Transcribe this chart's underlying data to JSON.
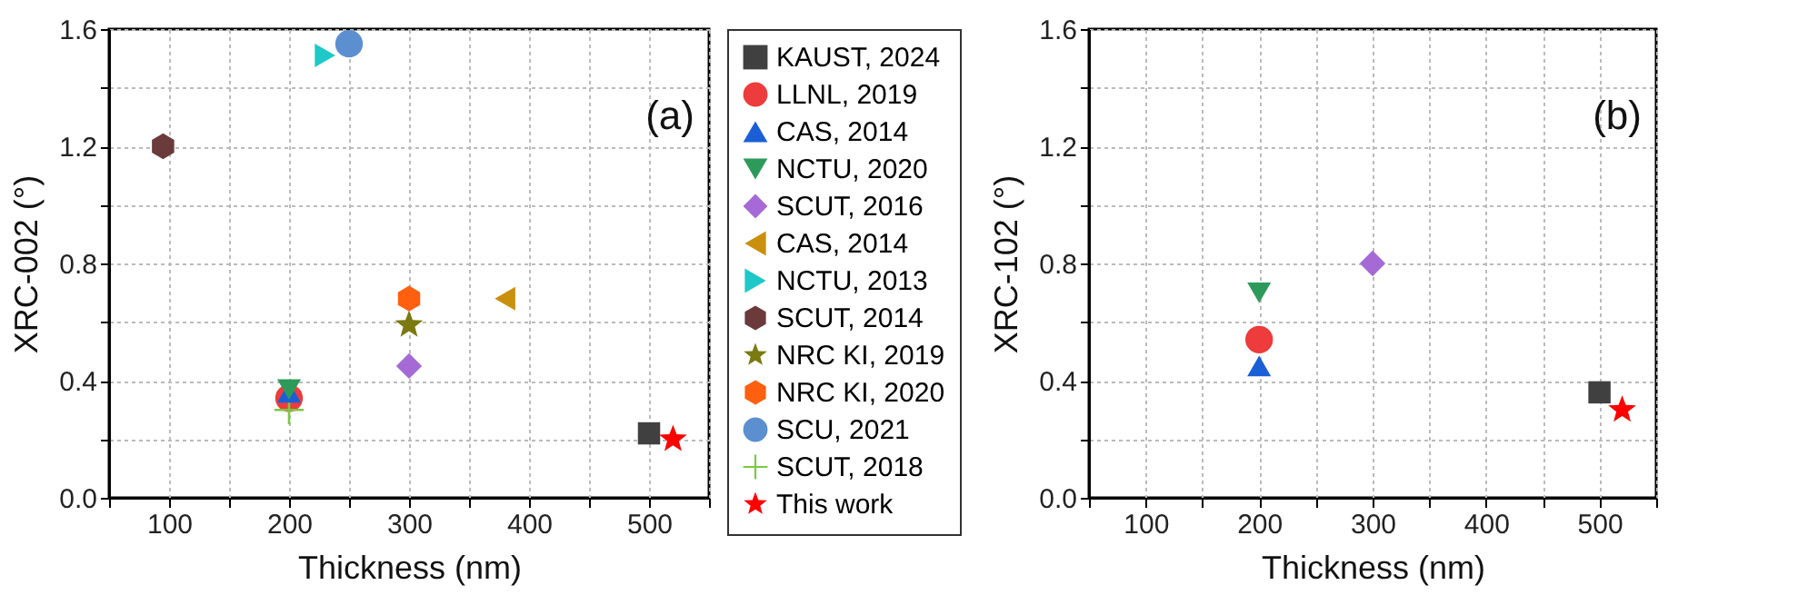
{
  "chart_data": [
    {
      "type": "scatter",
      "xlabel": "Thickness (nm)",
      "ylabel": "XRC-002 (°)",
      "annotations": [
        "(a)"
      ],
      "grid": true,
      "legend": "right",
      "xlim": [
        50,
        550
      ],
      "xticks": [
        {
          "value": 50,
          "label": null
        },
        100,
        {
          "value": 150,
          "label": null
        },
        200,
        {
          "value": 250,
          "label": null
        },
        300,
        {
          "value": 350,
          "label": null
        },
        400,
        {
          "value": 450,
          "label": null
        },
        500,
        {
          "value": 550,
          "label": null
        }
      ],
      "ylim": [
        0,
        1.6
      ],
      "yticks": [
        {
          "value": 0,
          "label": "0.0"
        },
        {
          "value": 0.2,
          "label": null
        },
        0.4,
        {
          "value": 0.6,
          "label": null
        },
        0.8,
        {
          "value": 1.0,
          "label": null
        },
        1.2,
        {
          "value": 1.4,
          "label": null
        },
        1.6
      ],
      "series": [
        {
          "name": "KAUST, 2024",
          "color": "#404040",
          "marker": "square",
          "x": [
            500
          ],
          "values": [
            0.22
          ]
        },
        {
          "name": "LLNL, 2019",
          "color": "#ee3b3b",
          "marker": "circle",
          "x": [
            200
          ],
          "values": [
            0.34
          ]
        },
        {
          "name": "CAS, 2014",
          "color": "#1a5fd6",
          "marker": "triangle",
          "x": [
            200
          ],
          "values": [
            0.36
          ]
        },
        {
          "name": "NCTU, 2020",
          "color": "#2e9a5a",
          "marker": "triangle-down",
          "x": [
            200
          ],
          "values": [
            0.37
          ]
        },
        {
          "name": "SCUT, 2016",
          "color": "#a56ad6",
          "marker": "diamond",
          "x": [
            300
          ],
          "values": [
            0.45
          ]
        },
        {
          "name": "CAS, 2014",
          "color": "#c8900c",
          "marker": "triangle-left",
          "x": [
            380
          ],
          "values": [
            0.68
          ]
        },
        {
          "name": "NCTU, 2013",
          "color": "#1ec8c8",
          "marker": "triangle-right",
          "x": [
            230
          ],
          "values": [
            1.51
          ]
        },
        {
          "name": "SCUT, 2014",
          "color": "#6b3a3a",
          "x": [
            95
          ],
          "values": [
            1.2
          ]
        },
        {
          "name": "NRC KI, 2019",
          "color": "#7a7a10",
          "marker": "star",
          "x": [
            300
          ],
          "values": [
            0.59
          ]
        },
        {
          "name": "NRC KI, 2020",
          "color": "#ff6010",
          "x": [
            300
          ],
          "values": [
            0.68
          ]
        },
        {
          "name": "SCU, 2021",
          "color": "#5b8fd0",
          "marker": "circle",
          "x": [
            250
          ],
          "values": [
            1.55
          ]
        },
        {
          "name": "SCUT, 2018",
          "color": "#7ac943",
          "marker": "plus",
          "x": [
            200
          ],
          "values": [
            0.3
          ]
        },
        {
          "name": "This work",
          "color": "#ff0000",
          "marker": "star",
          "x": [
            520
          ],
          "values": [
            0.2
          ]
        }
      ]
    },
    {
      "type": "scatter",
      "xlabel": "Thickness (nm)",
      "ylabel": "XRC-102 (°)",
      "annotations": [
        "(b)"
      ],
      "grid": true,
      "xlim": [
        50,
        550
      ],
      "xticks": [
        {
          "value": 50,
          "label": null
        },
        100,
        {
          "value": 150,
          "label": null
        },
        200,
        {
          "value": 250,
          "label": null
        },
        300,
        {
          "value": 350,
          "label": null
        },
        400,
        {
          "value": 450,
          "label": null
        },
        500,
        {
          "value": 550,
          "label": null
        }
      ],
      "ylim": [
        0,
        1.6
      ],
      "yticks": [
        {
          "value": 0,
          "label": "0.0"
        },
        {
          "value": 0.2,
          "label": null
        },
        0.4,
        {
          "value": 0.6,
          "label": null
        },
        0.8,
        {
          "value": 1.0,
          "label": null
        },
        1.2,
        {
          "value": 1.4,
          "label": null
        },
        1.6
      ],
      "series": [
        {
          "color": "#404040",
          "marker": "square",
          "x": [
            500
          ],
          "values": [
            0.36
          ]
        },
        {
          "color": "#ee3b3b",
          "marker": "circle",
          "x": [
            200
          ],
          "values": [
            0.54
          ]
        },
        {
          "color": "#1a5fd6",
          "marker": "triangle",
          "x": [
            200
          ],
          "values": [
            0.45
          ]
        },
        {
          "color": "#2e9a5a",
          "marker": "triangle-down",
          "x": [
            200
          ],
          "values": [
            0.7
          ]
        },
        {
          "color": "#a56ad6",
          "marker": "diamond",
          "x": [
            300
          ],
          "values": [
            0.8
          ]
        },
        {
          "color": "#ff0000",
          "marker": "star",
          "x": [
            520
          ],
          "values": [
            0.3
          ]
        }
      ]
    }
  ]
}
